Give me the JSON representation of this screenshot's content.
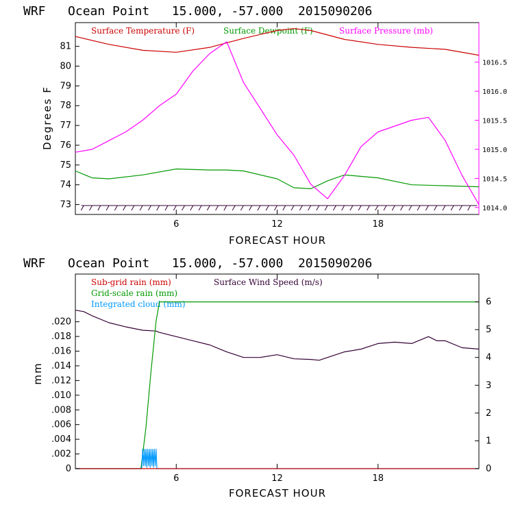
{
  "chart_data": [
    {
      "id": "top",
      "type": "line",
      "title": "WRF   Ocean Point   15.000, -57.000  2015090206",
      "xlabel": "FORECAST HOUR",
      "ylabel": "Degrees F",
      "xlim": [
        0,
        24
      ],
      "xticks": [
        6,
        12,
        18
      ],
      "y_left_lim": [
        72.5,
        82.2
      ],
      "y_left_ticks": [
        "73",
        "74",
        "75",
        "76",
        "77",
        "78",
        "79",
        "80",
        "81"
      ],
      "y_right_lim": [
        1013.88,
        1017.18
      ],
      "y_right_ticks": [
        "1014.0",
        "1014.5",
        "1015.0",
        "1015.5",
        "1016.0",
        "1016.5"
      ],
      "legend": [
        {
          "label": "Surface Temperature (F)",
          "color": "#cc0000"
        },
        {
          "label": "Surface Dewpoint (F)",
          "color": "#009900"
        },
        {
          "label": "Surface Pressure (mb)",
          "color": "#ff00ff"
        }
      ],
      "series": [
        {
          "name": "Surface Temperature (F)",
          "axis": "left",
          "color": "#cc0000",
          "x": [
            0,
            2,
            4,
            6,
            8,
            10,
            12,
            13,
            14,
            16,
            18,
            20,
            22,
            24
          ],
          "values": [
            81.5,
            81.1,
            80.8,
            80.7,
            80.95,
            81.4,
            81.8,
            81.9,
            81.8,
            81.35,
            81.1,
            80.95,
            80.85,
            80.55
          ]
        },
        {
          "name": "Surface Dewpoint (F)",
          "axis": "left",
          "color": "#009900",
          "x": [
            0,
            1,
            2,
            4,
            6,
            8,
            9,
            10,
            12,
            13,
            14,
            15,
            16,
            18,
            20,
            22,
            24
          ],
          "values": [
            74.7,
            74.35,
            74.3,
            74.5,
            74.8,
            74.75,
            74.75,
            74.7,
            74.3,
            73.85,
            73.8,
            74.2,
            74.5,
            74.35,
            74.0,
            73.95,
            73.9
          ]
        },
        {
          "name": "Surface Pressure (mb)",
          "axis": "right",
          "color": "#ff00ff",
          "x": [
            0,
            1,
            2,
            3,
            4,
            5,
            6,
            7,
            8,
            9,
            10,
            11,
            12,
            13,
            14,
            15,
            16,
            17,
            18,
            19,
            20,
            21,
            22,
            23,
            24
          ],
          "values": [
            1014.95,
            1015.0,
            1015.15,
            1015.3,
            1015.5,
            1015.75,
            1015.95,
            1016.35,
            1016.65,
            1016.85,
            1016.15,
            1015.7,
            1015.25,
            1014.9,
            1014.4,
            1014.15,
            1014.55,
            1015.05,
            1015.3,
            1015.4,
            1015.5,
            1015.55,
            1015.15,
            1014.55,
            1014.05
          ]
        },
        {
          "name": "Surface Wind Barbs",
          "axis": "left",
          "color": "#330033",
          "y_level": 72.95,
          "spacing_hours": 0.5
        }
      ]
    },
    {
      "id": "bottom",
      "type": "line",
      "title": "WRF   Ocean Point   15.000, -57.000  2015090206",
      "xlabel": "FORECAST HOUR",
      "ylabel": "mm",
      "xlim": [
        0,
        24
      ],
      "xticks": [
        6,
        12,
        18
      ],
      "y_left_lim": [
        0,
        0.0265
      ],
      "y_left_ticks": [
        "0",
        ".002",
        ".004",
        ".006",
        ".008",
        ".010",
        ".012",
        ".014",
        ".016",
        ".018",
        ".020"
      ],
      "y_right_lim": [
        0,
        7.0
      ],
      "y_right_ticks": [
        "0",
        "1",
        "2",
        "3",
        "4",
        "5",
        "6"
      ],
      "legend": [
        {
          "label": "Sub-grid rain (mm)",
          "color": "#cc0000"
        },
        {
          "label": "Surface Wind Speed (m/s)",
          "color": "#330033"
        },
        {
          "label": "Grid-scale rain (mm)",
          "color": "#009900"
        },
        {
          "label": "Integrated cloud (mm)",
          "color": "#0099ff"
        }
      ],
      "series": [
        {
          "name": "Surface Wind Speed (m/s)",
          "axis": "right",
          "color": "#330033",
          "x": [
            0,
            0.5,
            1,
            2,
            3,
            4,
            4.8,
            5,
            6,
            7,
            8,
            9,
            10,
            11,
            12,
            13,
            14,
            14.5,
            15,
            16,
            17,
            18,
            19,
            20,
            21,
            21.5,
            22,
            23,
            24
          ],
          "values": [
            5.7,
            5.65,
            5.5,
            5.25,
            5.1,
            4.98,
            4.95,
            4.9,
            4.75,
            4.6,
            4.45,
            4.2,
            4.0,
            4.0,
            4.1,
            3.95,
            3.93,
            3.9,
            4.0,
            4.2,
            4.3,
            4.5,
            4.55,
            4.5,
            4.75,
            4.6,
            4.6,
            4.35,
            4.3
          ]
        },
        {
          "name": "Grid-scale rain (mm)",
          "axis": "right",
          "color": "#009900",
          "x": [
            0,
            3.9,
            4.2,
            4.5,
            4.8,
            5.0,
            24
          ],
          "values": [
            0,
            0,
            1.5,
            3.5,
            5.3,
            6.0,
            6.0
          ]
        },
        {
          "name": "Integrated cloud (mm)",
          "axis": "right",
          "color": "#0099ff",
          "x": [
            0,
            3.95,
            4.0,
            4.05,
            4.1,
            4.15,
            4.2,
            4.25,
            4.3,
            4.35,
            4.4,
            4.45,
            4.5,
            4.55,
            4.6,
            4.65,
            4.7,
            4.75,
            4.8,
            4.85,
            24
          ],
          "values": [
            0,
            0,
            0.7,
            0.1,
            0.7,
            0.1,
            0.7,
            0.05,
            0.7,
            0.1,
            0.7,
            0.05,
            0.7,
            0.1,
            0.7,
            0.05,
            0.7,
            0.1,
            0.7,
            0,
            0
          ]
        },
        {
          "name": "Sub-grid rain (mm)",
          "axis": "left",
          "color": "#cc0000",
          "x": [
            0,
            24
          ],
          "values": [
            0,
            0
          ]
        }
      ]
    }
  ]
}
